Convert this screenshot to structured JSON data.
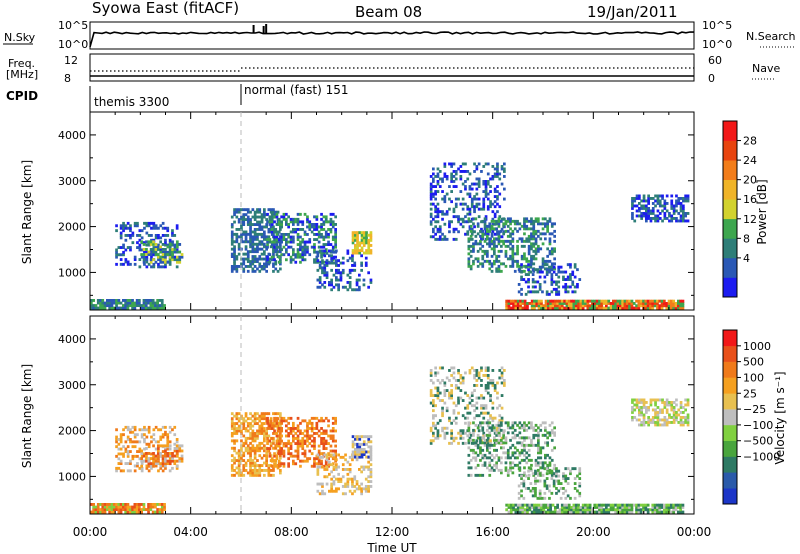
{
  "header": {
    "station": "Syowa East (fitACF)",
    "beam": "Beam 08",
    "date": "19/Jan/2011"
  },
  "strips": {
    "nsky_label": "N.Sky",
    "nsky_ticks": [
      "10^5",
      "10^0"
    ],
    "nsearch_label": "N.Search",
    "nsearch_ticks": [
      "10^5",
      "10^0"
    ],
    "freq_label": "Freq.",
    "freq_unit": "[MHz]",
    "freq_ticks": [
      "12",
      "8"
    ],
    "nave_label": "Nave",
    "nave_ticks": [
      "60",
      "0"
    ],
    "cpid_label": "CPID",
    "cpid_programs": [
      {
        "name": "themis 3300",
        "start_hour": 0
      },
      {
        "name": "normal (fast) 151",
        "start_hour": 6
      }
    ]
  },
  "power_colorbar": {
    "label": "Power [dB]",
    "ticks": [
      "28",
      "24",
      "20",
      "16",
      "12",
      "8",
      "4"
    ],
    "colors": [
      "#1c1cf0",
      "#2a58b5",
      "#2e7e78",
      "#3da64e",
      "#d2d22e",
      "#f0b428",
      "#f27d1a",
      "#e8440f",
      "#f21818"
    ]
  },
  "velocity_colorbar": {
    "label": "Velocity [m s⁻¹]",
    "ticks": [
      "1000",
      "500",
      "100",
      "25",
      "−25",
      "−100",
      "−500",
      "−1000"
    ],
    "colors": [
      "#1c36c8",
      "#2a5aaa",
      "#2e7a64",
      "#49a53d",
      "#80d040",
      "#bebebe",
      "#e8c050",
      "#f5a020",
      "#f07a1a",
      "#e8501a",
      "#f21818"
    ]
  },
  "x_ticks": [
    "00:00",
    "04:00",
    "08:00",
    "12:00",
    "16:00",
    "20:00",
    "00:00"
  ],
  "x_title": "Time UT",
  "y_title": "Slant Range [km]",
  "y_ticks": [
    "4000",
    "3000",
    "2000",
    "1000"
  ],
  "chart_data": {
    "type": "heatmap",
    "x_range_hours": [
      0,
      24
    ],
    "y_range_km": [
      180,
      4500
    ],
    "panels": [
      "power",
      "velocity"
    ],
    "scatter_regions": [
      {
        "t0": 0.0,
        "t1": 3.0,
        "r0": 200,
        "r1": 420,
        "density": 0.85
      },
      {
        "t0": 1.0,
        "t1": 3.5,
        "r0": 1100,
        "r1": 2100,
        "density": 0.35
      },
      {
        "t0": 2.0,
        "t1": 3.7,
        "r0": 1200,
        "r1": 1700,
        "density": 0.55
      },
      {
        "t0": 5.6,
        "t1": 7.6,
        "r0": 1000,
        "r1": 2400,
        "density": 0.55
      },
      {
        "t0": 7.0,
        "t1": 9.8,
        "r0": 1200,
        "r1": 2300,
        "density": 0.45
      },
      {
        "t0": 9.0,
        "t1": 11.2,
        "r0": 600,
        "r1": 1500,
        "density": 0.35
      },
      {
        "t0": 10.4,
        "t1": 11.2,
        "r0": 1400,
        "r1": 1900,
        "density": 0.7
      },
      {
        "t0": 13.5,
        "t1": 16.5,
        "r0": 1700,
        "r1": 3400,
        "density": 0.3
      },
      {
        "t0": 15.0,
        "t1": 18.5,
        "r0": 1000,
        "r1": 2200,
        "density": 0.4
      },
      {
        "t0": 17.0,
        "t1": 19.5,
        "r0": 500,
        "r1": 1200,
        "density": 0.35
      },
      {
        "t0": 16.5,
        "t1": 23.6,
        "r0": 200,
        "r1": 400,
        "density": 0.9
      },
      {
        "t0": 21.5,
        "t1": 23.8,
        "r0": 2100,
        "r1": 2700,
        "density": 0.55
      }
    ]
  }
}
